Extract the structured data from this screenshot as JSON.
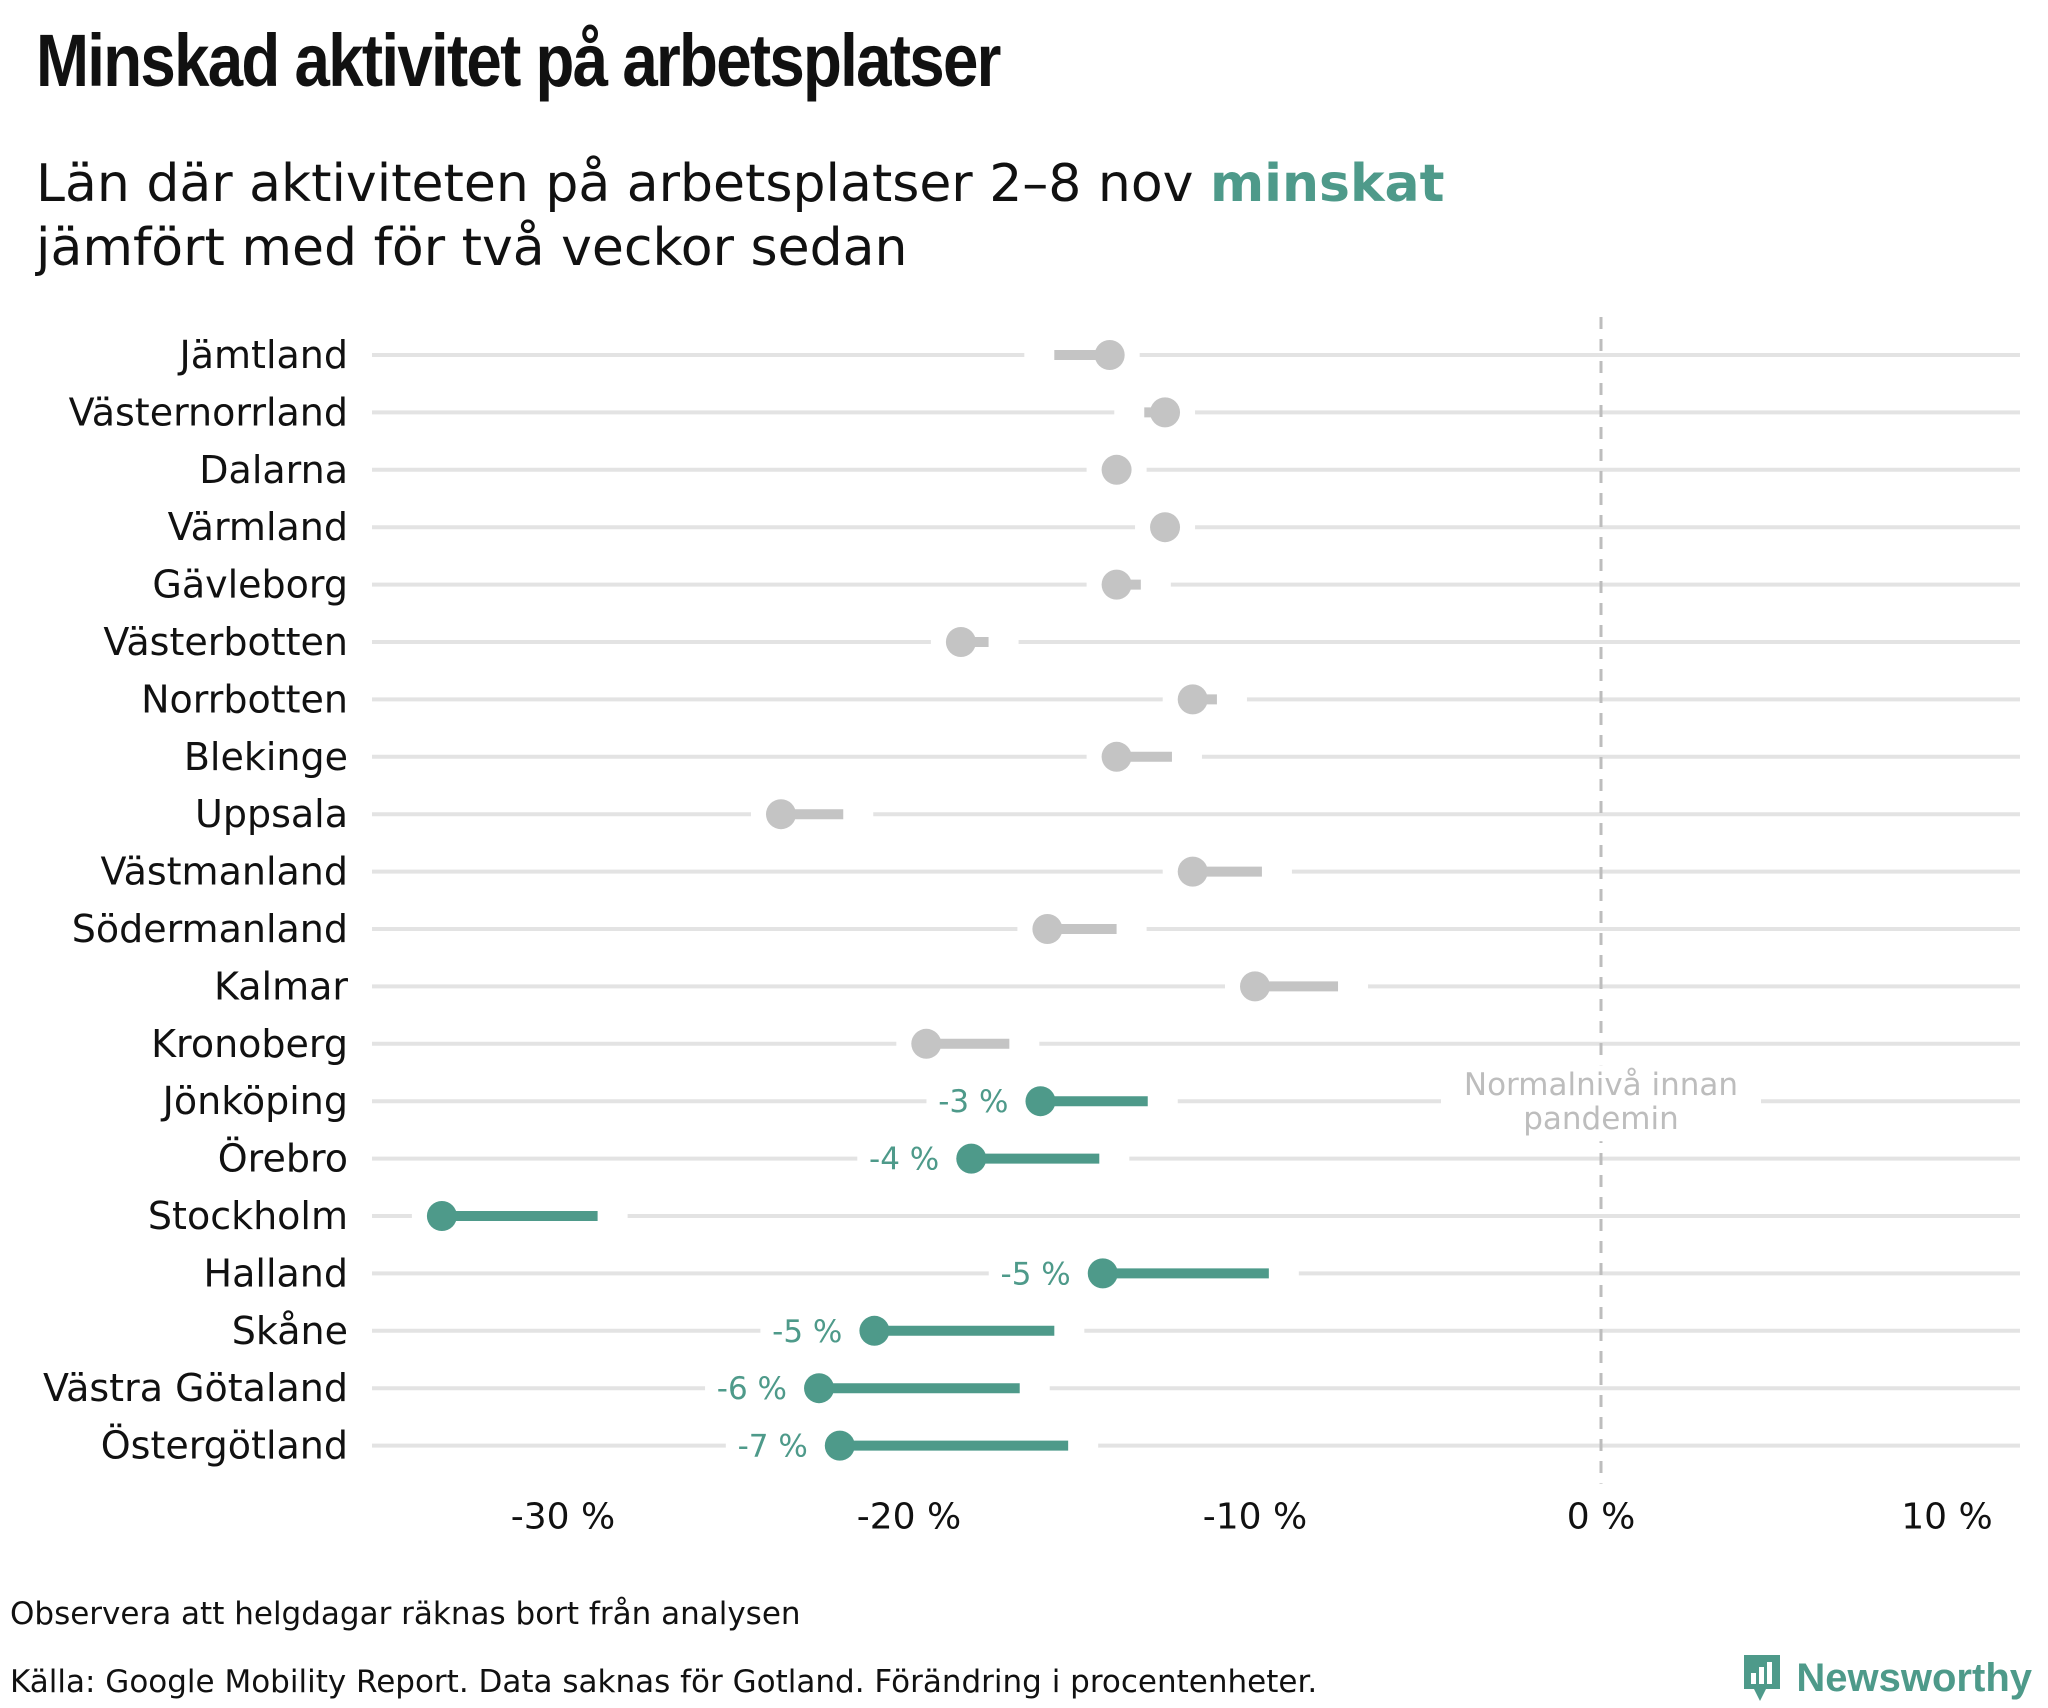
{
  "title": "Minskad aktivitet på arbetsplatser",
  "subtitle": {
    "line1_before": "Län där aktiviteten på arbetsplatser 2–8 nov ",
    "highlight": "minskat",
    "line2": "jämfört med för två veckor sedan"
  },
  "footnote": "Observera att helgdagar räknas bort från analysen",
  "source": "Källa: Google Mobility Report. Data saknas för Gotland. Förändring i procentenheter.",
  "brand": {
    "name": "Newsworthy",
    "icon": "newsworthy-logo-icon"
  },
  "colors": {
    "highlight": "#4e9a8a",
    "muted": "#c4c4c4",
    "grid": "#e3e3e3",
    "reference": "#bdbdbd"
  },
  "chart_data": {
    "type": "dumbbell",
    "x_axis": {
      "range": [
        -33.5,
        12
      ],
      "ticks": [
        -30,
        -20,
        -10,
        0,
        10
      ],
      "tick_labels": [
        "-30 %",
        "-20 %",
        "-10 %",
        "0 %",
        "10 %"
      ]
    },
    "reference_line": {
      "x": 0,
      "label_line1": "Normalnivå innan",
      "label_line2": "pandemin"
    },
    "rows": [
      {
        "name": "Jämtland",
        "now": -14.2,
        "before": -15.8,
        "highlight": false,
        "label": ""
      },
      {
        "name": "Västernorrland",
        "now": -12.6,
        "before": -13.2,
        "highlight": false,
        "label": ""
      },
      {
        "name": "Dalarna",
        "now": -14.0,
        "before": -14.0,
        "highlight": false,
        "label": ""
      },
      {
        "name": "Värmland",
        "now": -12.6,
        "before": -12.6,
        "highlight": false,
        "label": ""
      },
      {
        "name": "Gävleborg",
        "now": -14.0,
        "before": -13.3,
        "highlight": false,
        "label": ""
      },
      {
        "name": "Västerbotten",
        "now": -18.5,
        "before": -17.7,
        "highlight": false,
        "label": ""
      },
      {
        "name": "Norrbotten",
        "now": -11.8,
        "before": -11.1,
        "highlight": false,
        "label": ""
      },
      {
        "name": "Blekinge",
        "now": -14.0,
        "before": -12.4,
        "highlight": false,
        "label": ""
      },
      {
        "name": "Uppsala",
        "now": -23.7,
        "before": -21.9,
        "highlight": false,
        "label": ""
      },
      {
        "name": "Västmanland",
        "now": -11.8,
        "before": -9.8,
        "highlight": false,
        "label": ""
      },
      {
        "name": "Södermanland",
        "now": -16.0,
        "before": -14.0,
        "highlight": false,
        "label": ""
      },
      {
        "name": "Kalmar",
        "now": -10.0,
        "before": -7.6,
        "highlight": false,
        "label": ""
      },
      {
        "name": "Kronoberg",
        "now": -19.5,
        "before": -17.1,
        "highlight": false,
        "label": ""
      },
      {
        "name": "Jönköping",
        "now": -16.2,
        "before": -13.1,
        "highlight": true,
        "label": "-3 %"
      },
      {
        "name": "Örebro",
        "now": -18.2,
        "before": -14.5,
        "highlight": true,
        "label": "-4 %"
      },
      {
        "name": "Stockholm",
        "now": -33.5,
        "before": -29.0,
        "highlight": true,
        "label": ""
      },
      {
        "name": "Halland",
        "now": -14.4,
        "before": -9.6,
        "highlight": true,
        "label": "-5 %"
      },
      {
        "name": "Skåne",
        "now": -21.0,
        "before": -15.8,
        "highlight": true,
        "label": "-5 %"
      },
      {
        "name": "Västra Götaland",
        "now": -22.6,
        "before": -16.8,
        "highlight": true,
        "label": "-6 %"
      },
      {
        "name": "Östergötland",
        "now": -22.0,
        "before": -15.4,
        "highlight": true,
        "label": "-7 %"
      }
    ]
  }
}
